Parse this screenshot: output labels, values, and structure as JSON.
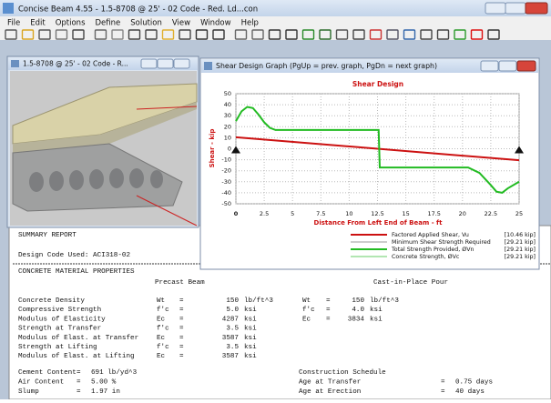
{
  "window": {
    "title": "Concise Beam 4.55 - 1.5-8708 @ 25' - 02 Code - Red. Ld...con"
  },
  "menu": [
    "File",
    "Edit",
    "Options",
    "Define",
    "Solution",
    "View",
    "Window",
    "Help"
  ],
  "model_window": {
    "title": "1.5-8708 @ 25' - 02 Code - R..."
  },
  "graph_window": {
    "title": "Shear Design Graph  (PgUp = prev. graph, PgDn = next graph)"
  },
  "chart_data": {
    "type": "line",
    "title": "Shear Design",
    "y_label": "Shear - kip",
    "x_label": "Distance From Left End of Beam - ft",
    "xlim": [
      0,
      25
    ],
    "ylim": [
      -50,
      50
    ],
    "xticks": [
      0,
      2.5,
      5,
      7.5,
      10,
      12.5,
      15,
      17.5,
      20,
      22.5,
      25
    ],
    "yticks": [
      50,
      40,
      30,
      20,
      10,
      0,
      -10,
      -20,
      -30,
      -40,
      -50
    ],
    "grid": true,
    "series": [
      {
        "name": "Factored Applied Shear, Vu",
        "note": "[10.46 kip]",
        "color": "#cc1111",
        "x": [
          0,
          25
        ],
        "values": [
          10.46,
          -10.46
        ]
      },
      {
        "name": "Minimum Shear Strength Required",
        "note": "[29.21 kip]",
        "color": "#999999"
      },
      {
        "name": "Total Strength Provided, ØVn",
        "note": "[29.21 kip]",
        "color": "#22bb22",
        "x": [
          0,
          0.5,
          1,
          1.5,
          2,
          2.5,
          3,
          3.5,
          12.6,
          12.7,
          20.5,
          21.5,
          22.5,
          23,
          23.5,
          24,
          25
        ],
        "values": [
          25,
          34,
          38,
          37,
          31,
          24,
          19,
          17,
          17,
          -17,
          -17,
          -22,
          -33,
          -39,
          -40,
          -36,
          -30
        ]
      },
      {
        "name": "Concrete Strength, ØVc",
        "note": "[29.21 kip]",
        "color": "#66cc66"
      }
    ]
  },
  "report": {
    "title": "SUMMARY REPORT",
    "code_line": "Design Code Used: ACI318-02",
    "section": "CONCRETE MATERIAL PROPERTIES",
    "col1": "Precast Beam",
    "col2": "Cast-in-Place Pour",
    "rows": [
      [
        "Concrete Density",
        "Wt",
        "=",
        "150",
        "lb/ft^3",
        "Wt",
        "=",
        "150",
        "lb/ft^3"
      ],
      [
        "Compressive Strength",
        "f'c",
        "=",
        "5.0",
        "ksi",
        "f'c",
        "=",
        "4.0",
        "ksi"
      ],
      [
        "Modulus of Elasticity",
        "Ec",
        "=",
        "4287",
        "ksi",
        "Ec",
        "=",
        "3834",
        "ksi"
      ],
      [
        "Strength at Transfer",
        "f'c",
        "=",
        "3.5",
        "ksi"
      ],
      [
        "Modulus of Elast. at Transfer",
        "Ec",
        "=",
        "3587",
        "ksi"
      ],
      [
        "Strength at Lifting",
        "f'c",
        "=",
        "3.5",
        "ksi"
      ],
      [
        "Modulus of Elast. at Lifting",
        "Ec",
        "=",
        "3587",
        "ksi"
      ]
    ],
    "lower": [
      {
        "left": [
          "Cement Content",
          "=",
          "691 lb/yd^3"
        ],
        "right": [
          "Construction Schedule"
        ]
      },
      {
        "left": [
          "Air Content",
          "=",
          "5.00 %"
        ],
        "right": [
          "Age at Transfer",
          "=",
          "0.75 days"
        ]
      },
      {
        "left": [
          "Slump",
          "=",
          "1.97 in"
        ],
        "right": [
          "Age at Erection",
          "=",
          "40 days"
        ]
      }
    ]
  }
}
